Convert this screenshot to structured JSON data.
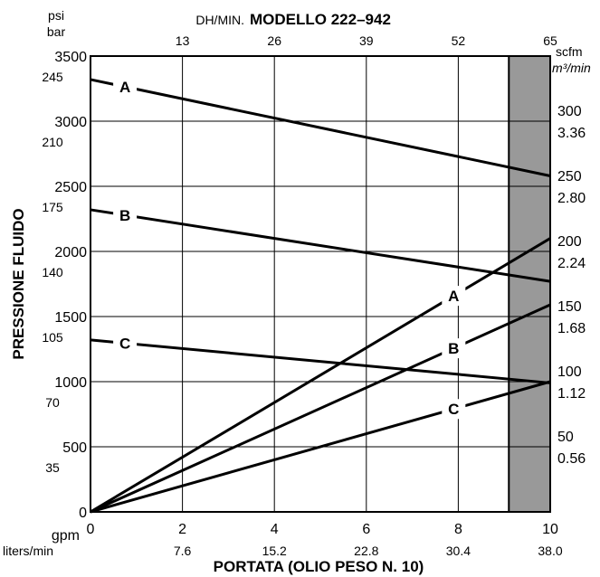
{
  "chart_data": {
    "type": "line",
    "title": "MODELLO 222–942",
    "top_axis_label": "DH/MIN.",
    "top_ticks": [
      "13",
      "26",
      "39",
      "52",
      "65"
    ],
    "xlabel": "PORTATA (OLIO PESO N. 10)",
    "x_unit_gpm": "gpm",
    "x_unit_lpm": "liters/min",
    "x_ticks_gpm": [
      "0",
      "2",
      "4",
      "6",
      "8",
      "10"
    ],
    "x_ticks_lpm": [
      "7.6",
      "15.2",
      "22.8",
      "30.4",
      "38.0"
    ],
    "xlim": [
      0,
      10
    ],
    "ylabel": "PRESSIONE FLUIDO",
    "y_unit_psi": "psi",
    "y_unit_bar": "bar",
    "y_ticks_psi": [
      "3500",
      "3000",
      "2500",
      "2000",
      "1500",
      "1000",
      "500",
      "0"
    ],
    "y_ticks_bar": [
      "245",
      "210",
      "175",
      "140",
      "105",
      "70",
      "35"
    ],
    "ylim": [
      0,
      3500
    ],
    "right_unit_scfm": "scfm",
    "right_unit_m3": "m³/min",
    "right_ticks_scfm": [
      "300",
      "250",
      "200",
      "150",
      "100",
      "50"
    ],
    "right_ticks_m3": [
      "3.36",
      "2.80",
      "2.24",
      "1.68",
      "1.12",
      "0.56"
    ],
    "shaded_region_x": [
      9.1,
      10
    ],
    "shade_color": "#999999",
    "pressure_series": [
      {
        "name": "A",
        "x": [
          0,
          10
        ],
        "y": [
          3320,
          2580
        ]
      },
      {
        "name": "B",
        "x": [
          0,
          10
        ],
        "y": [
          2320,
          1770
        ]
      },
      {
        "name": "C",
        "x": [
          0,
          10
        ],
        "y": [
          1320,
          990
        ]
      }
    ],
    "air_series": [
      {
        "name": "A",
        "x": [
          0,
          10
        ],
        "scfm": [
          0,
          210
        ]
      },
      {
        "name": "B",
        "x": [
          0,
          10
        ],
        "scfm": [
          0,
          159
        ]
      },
      {
        "name": "C",
        "x": [
          0,
          10
        ],
        "scfm": [
          0,
          100
        ]
      }
    ],
    "grid": true
  }
}
